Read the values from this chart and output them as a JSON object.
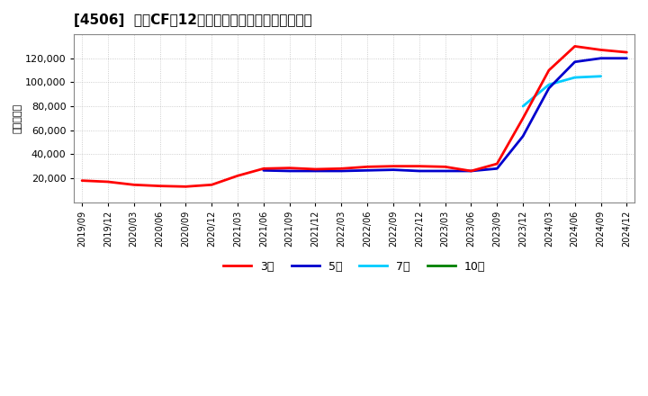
{
  "title": "[4506]  営業CFの12か月移動合計の標準偏差の推移",
  "ylabel": "（百万円）",
  "background_color": "#ffffff",
  "plot_bg_color": "#ffffff",
  "grid_color": "#aaaaaa",
  "ylim": [
    0,
    140000
  ],
  "yticks": [
    20000,
    40000,
    60000,
    80000,
    100000,
    120000
  ],
  "series": {
    "3y": {
      "color": "#ff0000",
      "label": "3年",
      "linewidth": 2.0
    },
    "5y": {
      "color": "#0000cd",
      "label": "5年",
      "linewidth": 2.0
    },
    "7y": {
      "color": "#00ccff",
      "label": "7年",
      "linewidth": 2.0
    },
    "10y": {
      "color": "#008000",
      "label": "10年",
      "linewidth": 2.0
    }
  },
  "x_labels": [
    "2019/09",
    "2019/12",
    "2020/03",
    "2020/06",
    "2020/09",
    "2020/12",
    "2021/03",
    "2021/06",
    "2021/09",
    "2021/12",
    "2022/03",
    "2022/06",
    "2022/09",
    "2022/12",
    "2023/03",
    "2023/06",
    "2023/09",
    "2023/12",
    "2024/03",
    "2024/06",
    "2024/09",
    "2024/12"
  ],
  "data_3y": [
    18000,
    17000,
    14500,
    13500,
    13000,
    14500,
    22000,
    28000,
    28500,
    27500,
    28000,
    29500,
    30000,
    30000,
    29500,
    26000,
    32000,
    70000,
    110000,
    130000,
    127000,
    125000
  ],
  "data_5y": [
    null,
    null,
    null,
    null,
    null,
    null,
    null,
    26500,
    26000,
    26000,
    26000,
    26500,
    27000,
    26000,
    26000,
    26000,
    28000,
    55000,
    95000,
    117000,
    120000,
    120000
  ],
  "data_7y": [
    null,
    null,
    null,
    null,
    null,
    null,
    null,
    null,
    null,
    null,
    null,
    null,
    null,
    null,
    null,
    null,
    null,
    80000,
    98000,
    104000,
    105000,
    null
  ],
  "data_10y": [
    null,
    null,
    null,
    null,
    null,
    null,
    null,
    null,
    null,
    null,
    null,
    null,
    null,
    null,
    null,
    null,
    null,
    null,
    null,
    null,
    null,
    null
  ]
}
